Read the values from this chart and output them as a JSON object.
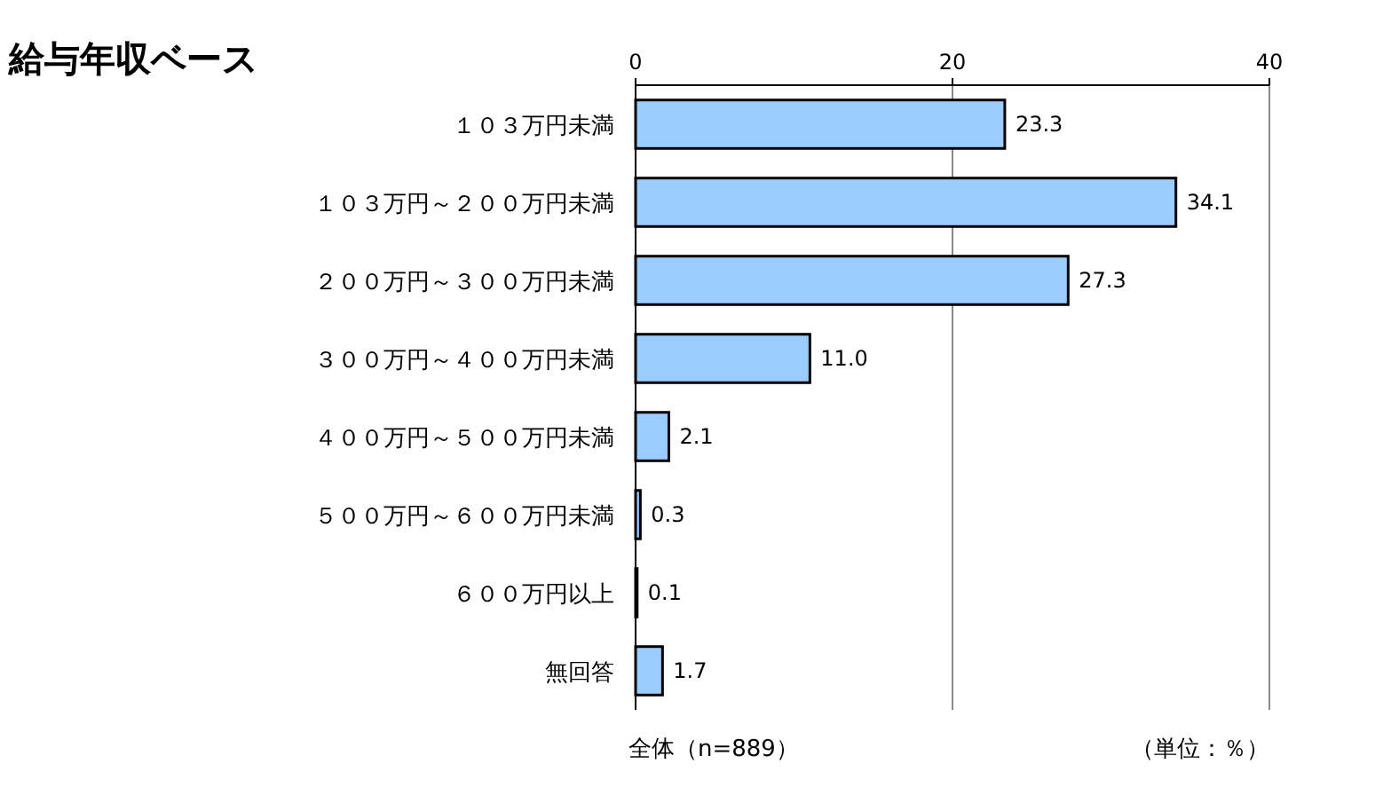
{
  "chart_data": {
    "type": "bar",
    "orientation": "horizontal",
    "title": "給与年収ベース",
    "categories": [
      "１０３万円未満",
      "１０３万円～２００万円未満",
      "２００万円～３００万円未満",
      "３００万円～４００万円未満",
      "４００万円～５００万円未満",
      "５００万円～６００万円未満",
      "６００万円以上",
      "無回答"
    ],
    "values": [
      23.3,
      34.1,
      27.3,
      11.0,
      2.1,
      0.3,
      0.1,
      1.7
    ],
    "value_labels": [
      "23.3",
      "34.1",
      "27.3",
      "11.0",
      "2.1",
      "0.3",
      "0.1",
      "1.7"
    ],
    "color": "#99ccff",
    "xlim": [
      0,
      40
    ],
    "xticks": [
      0,
      20,
      40
    ],
    "grid": "x",
    "annotations": [
      "全体（n=889）",
      "（単位：％）"
    ]
  }
}
